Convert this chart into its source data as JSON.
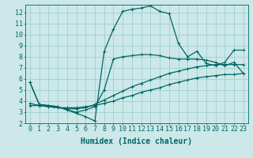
{
  "xlabel": "Humidex (Indice chaleur)",
  "bg_color": "#cce8e8",
  "grid_color": "#99cccc",
  "line_color": "#006666",
  "xlim": [
    -0.5,
    23.5
  ],
  "ylim": [
    2,
    12.7
  ],
  "xticks": [
    0,
    1,
    2,
    3,
    4,
    5,
    6,
    7,
    8,
    9,
    10,
    11,
    12,
    13,
    14,
    15,
    16,
    17,
    18,
    19,
    20,
    21,
    22,
    23
  ],
  "yticks": [
    2,
    3,
    4,
    5,
    6,
    7,
    8,
    9,
    10,
    11,
    12
  ],
  "series": {
    "main": {
      "x": [
        0,
        1,
        2,
        3,
        4,
        5,
        6,
        7,
        8,
        9,
        10,
        11,
        12,
        13,
        14,
        15,
        16,
        17,
        18,
        19,
        20,
        21,
        22,
        23
      ],
      "y": [
        5.7,
        3.7,
        3.6,
        3.5,
        3.2,
        2.9,
        2.6,
        2.2,
        8.5,
        10.5,
        12.1,
        12.3,
        12.4,
        12.6,
        12.1,
        11.9,
        9.2,
        8.0,
        8.5,
        7.4,
        7.2,
        7.5,
        8.6,
        8.6
      ]
    },
    "line2": {
      "x": [
        0,
        1,
        2,
        3,
        4,
        5,
        6,
        7,
        8,
        9,
        10,
        11,
        12,
        13,
        14,
        15,
        16,
        17,
        18,
        19,
        20,
        21,
        22,
        23
      ],
      "y": [
        3.6,
        3.6,
        3.5,
        3.4,
        3.4,
        3.4,
        3.5,
        3.6,
        3.8,
        4.0,
        4.3,
        4.5,
        4.8,
        5.0,
        5.2,
        5.5,
        5.7,
        5.9,
        6.1,
        6.2,
        6.3,
        6.4,
        6.4,
        6.5
      ]
    },
    "line3": {
      "x": [
        0,
        1,
        2,
        3,
        4,
        5,
        6,
        7,
        8,
        9,
        10,
        11,
        12,
        13,
        14,
        15,
        16,
        17,
        18,
        19,
        20,
        21,
        22,
        23
      ],
      "y": [
        3.8,
        3.6,
        3.5,
        3.4,
        3.3,
        3.3,
        3.4,
        3.7,
        4.1,
        4.5,
        4.9,
        5.3,
        5.6,
        5.9,
        6.2,
        6.5,
        6.7,
        6.9,
        7.1,
        7.2,
        7.3,
        7.3,
        7.3,
        7.3
      ]
    },
    "line4": {
      "x": [
        0,
        1,
        2,
        3,
        4,
        5,
        6,
        7,
        8,
        9,
        10,
        11,
        12,
        13,
        14,
        15,
        16,
        17,
        18,
        19,
        20,
        21,
        22,
        23
      ],
      "y": [
        5.7,
        3.7,
        3.6,
        3.5,
        3.2,
        3.0,
        3.2,
        3.5,
        5.0,
        7.8,
        8.0,
        8.1,
        8.2,
        8.2,
        8.1,
        7.9,
        7.8,
        7.8,
        7.8,
        7.7,
        7.5,
        7.2,
        7.5,
        6.5
      ]
    }
  },
  "marker": "+",
  "linewidth": 0.9,
  "markersize": 3,
  "font_family": "monospace",
  "xlabel_fontsize": 7,
  "tick_fontsize": 6
}
